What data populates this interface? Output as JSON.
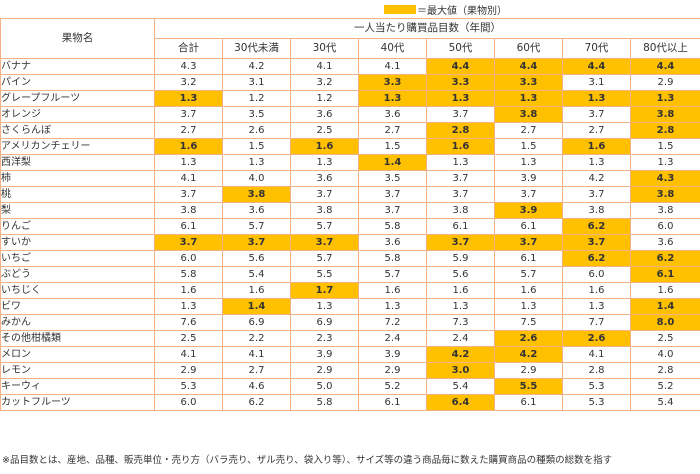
{
  "legend": {
    "label": "＝最大値（果物別）"
  },
  "table": {
    "row_header": "果物名",
    "group_header": "一人当たり購買品目数（年間）",
    "columns": [
      "合計",
      "30代未満",
      "30代",
      "40代",
      "50代",
      "60代",
      "70代",
      "80代以上"
    ],
    "rows": [
      {
        "name": "バナナ",
        "values": [
          "4.3",
          "4.2",
          "4.1",
          "4.1",
          "4.4",
          "4.4",
          "4.4",
          "4.4"
        ],
        "max": [
          4,
          5,
          6,
          7
        ]
      },
      {
        "name": "パイン",
        "values": [
          "3.2",
          "3.1",
          "3.2",
          "3.3",
          "3.3",
          "3.3",
          "3.1",
          "2.9"
        ],
        "max": [
          3,
          4,
          5
        ]
      },
      {
        "name": "グレープフルーツ",
        "values": [
          "1.3",
          "1.2",
          "1.2",
          "1.3",
          "1.3",
          "1.3",
          "1.3",
          "1.3"
        ],
        "max": [
          0,
          3,
          4,
          5,
          6,
          7
        ]
      },
      {
        "name": "オレンジ",
        "values": [
          "3.7",
          "3.5",
          "3.6",
          "3.6",
          "3.7",
          "3.8",
          "3.7",
          "3.8"
        ],
        "max": [
          5,
          7
        ]
      },
      {
        "name": "さくらんぼ",
        "values": [
          "2.7",
          "2.6",
          "2.5",
          "2.7",
          "2.8",
          "2.7",
          "2.7",
          "2.8"
        ],
        "max": [
          4,
          7
        ]
      },
      {
        "name": "アメリカンチェリー",
        "values": [
          "1.6",
          "1.5",
          "1.6",
          "1.5",
          "1.6",
          "1.5",
          "1.6",
          "1.5"
        ],
        "max": [
          0,
          2,
          4,
          6
        ]
      },
      {
        "name": "西洋梨",
        "values": [
          "1.3",
          "1.3",
          "1.3",
          "1.4",
          "1.3",
          "1.3",
          "1.3",
          "1.3"
        ],
        "max": [
          3
        ]
      },
      {
        "name": "柿",
        "values": [
          "4.1",
          "4.0",
          "3.6",
          "3.5",
          "3.7",
          "3.9",
          "4.2",
          "4.3"
        ],
        "max": [
          7
        ]
      },
      {
        "name": "桃",
        "values": [
          "3.7",
          "3.8",
          "3.7",
          "3.7",
          "3.7",
          "3.7",
          "3.7",
          "3.8"
        ],
        "max": [
          1,
          7
        ]
      },
      {
        "name": "梨",
        "values": [
          "3.8",
          "3.6",
          "3.8",
          "3.7",
          "3.8",
          "3.9",
          "3.8",
          "3.8"
        ],
        "max": [
          5
        ]
      },
      {
        "name": "りんご",
        "values": [
          "6.1",
          "5.7",
          "5.7",
          "5.8",
          "6.1",
          "6.1",
          "6.2",
          "6.0"
        ],
        "max": [
          6
        ]
      },
      {
        "name": "すいか",
        "values": [
          "3.7",
          "3.7",
          "3.7",
          "3.6",
          "3.7",
          "3.7",
          "3.7",
          "3.6"
        ],
        "max": [
          0,
          1,
          2,
          4,
          5,
          6
        ]
      },
      {
        "name": "いちご",
        "values": [
          "6.0",
          "5.6",
          "5.7",
          "5.8",
          "5.9",
          "6.1",
          "6.2",
          "6.2"
        ],
        "max": [
          6,
          7
        ]
      },
      {
        "name": "ぶどう",
        "values": [
          "5.8",
          "5.4",
          "5.5",
          "5.7",
          "5.6",
          "5.7",
          "6.0",
          "6.1"
        ],
        "max": [
          7
        ]
      },
      {
        "name": "いちじく",
        "values": [
          "1.6",
          "1.6",
          "1.7",
          "1.6",
          "1.6",
          "1.6",
          "1.6",
          "1.6"
        ],
        "max": [
          2
        ]
      },
      {
        "name": "ビワ",
        "values": [
          "1.3",
          "1.4",
          "1.3",
          "1.3",
          "1.3",
          "1.3",
          "1.3",
          "1.4"
        ],
        "max": [
          1,
          7
        ]
      },
      {
        "name": "みかん",
        "values": [
          "7.6",
          "6.9",
          "6.9",
          "7.2",
          "7.3",
          "7.5",
          "7.7",
          "8.0"
        ],
        "max": [
          7
        ]
      },
      {
        "name": "その他柑橘類",
        "values": [
          "2.5",
          "2.2",
          "2.3",
          "2.4",
          "2.4",
          "2.6",
          "2.6",
          "2.5"
        ],
        "max": [
          5,
          6
        ]
      },
      {
        "name": "メロン",
        "values": [
          "4.1",
          "4.1",
          "3.9",
          "3.9",
          "4.2",
          "4.2",
          "4.1",
          "4.0"
        ],
        "max": [
          4,
          5
        ]
      },
      {
        "name": "レモン",
        "values": [
          "2.9",
          "2.7",
          "2.9",
          "2.9",
          "3.0",
          "2.9",
          "2.8",
          "2.8"
        ],
        "max": [
          4
        ]
      },
      {
        "name": "キーウィ",
        "values": [
          "5.3",
          "4.6",
          "5.0",
          "5.2",
          "5.4",
          "5.5",
          "5.3",
          "5.2"
        ],
        "max": [
          5
        ]
      },
      {
        "name": "カットフルーツ",
        "values": [
          "6.0",
          "6.2",
          "5.8",
          "6.1",
          "6.4",
          "6.1",
          "5.3",
          "5.4"
        ],
        "max": [
          4
        ]
      }
    ]
  },
  "footnote": "※品目数とは、産地、品種、販売単位・売り方（バラ売り、ザル売り、袋入り等）、サイズ等の違う商品毎に数えた購買商品の種類の総数を指す",
  "colors": {
    "highlight": "#FFC000",
    "border": "#F4B183",
    "text": "#333333"
  }
}
